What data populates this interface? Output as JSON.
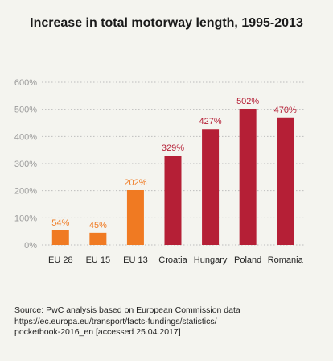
{
  "chart_data": {
    "type": "bar",
    "title": "Increase in total motorway length, 1995-2013",
    "categories": [
      "EU 28",
      "EU 15",
      "EU 13",
      "Croatia",
      "Hungary",
      "Poland",
      "Romania"
    ],
    "values": [
      54,
      45,
      202,
      329,
      427,
      502,
      470
    ],
    "value_labels": [
      "54%",
      "45%",
      "202%",
      "329%",
      "427%",
      "502%",
      "470%"
    ],
    "yticks": [
      0,
      100,
      200,
      300,
      400,
      500,
      600
    ],
    "ytick_labels": [
      "0%",
      "100%",
      "200%",
      "300%",
      "400%",
      "500%",
      "600%"
    ],
    "ylim": [
      0,
      600
    ],
    "grid": true,
    "bar_colors": [
      "#f07a22",
      "#f07a22",
      "#f07a22",
      "#b51f36",
      "#b51f36",
      "#b51f36",
      "#b51f36"
    ]
  },
  "source": {
    "line1": "Source: PwC analysis based on European Commission data",
    "line2": "https://ec.europa.eu/transport/facts-fundings/statistics/",
    "line3": "pocketbook-2016_en [accessed 25.04.2017]"
  }
}
